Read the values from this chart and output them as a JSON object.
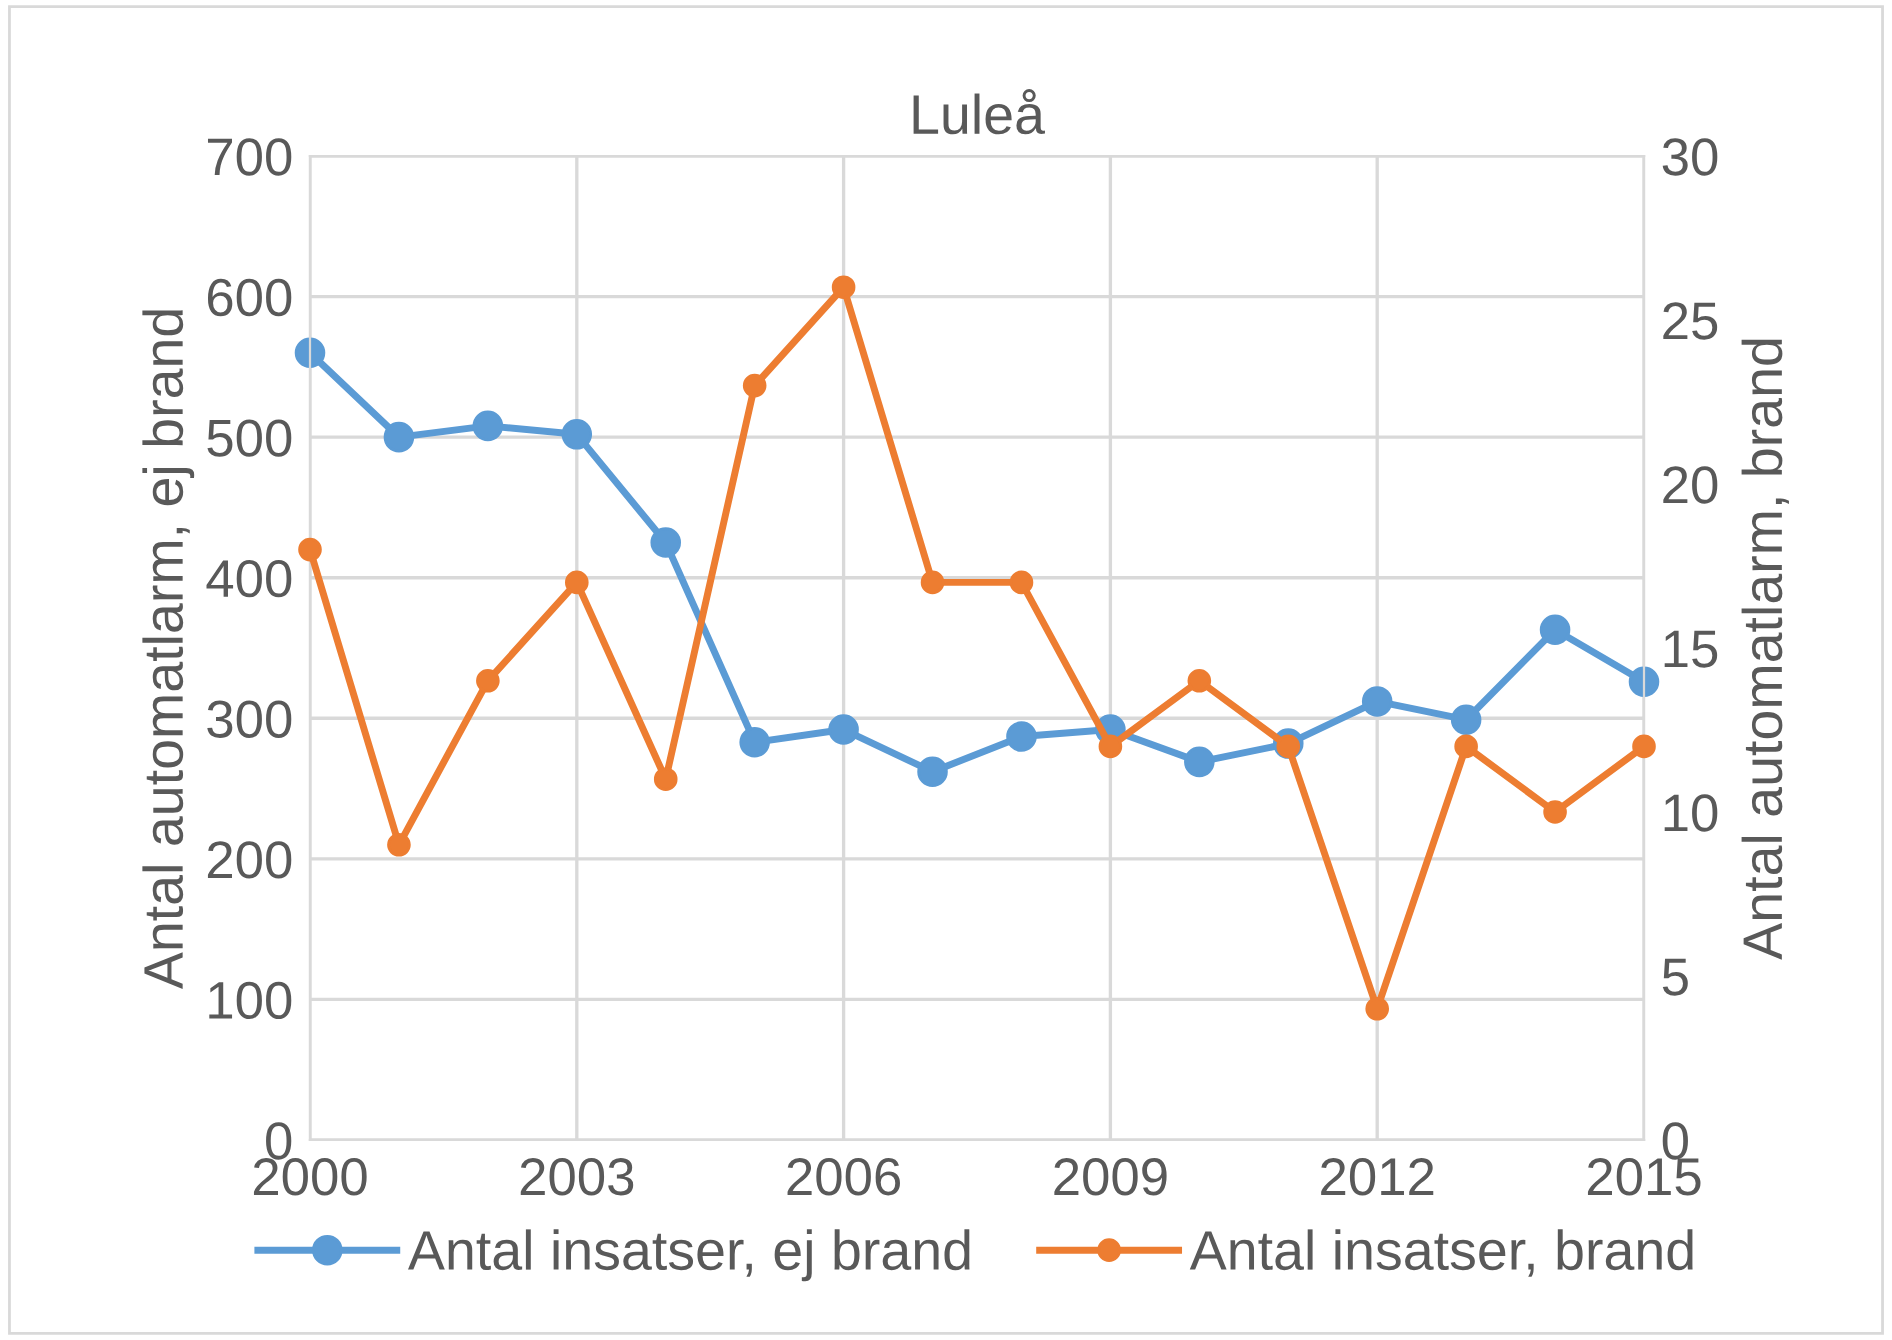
{
  "chart_data": {
    "type": "line",
    "title": "Luleå",
    "ylabel": "Antal automatlarm, ej brand",
    "y2label": "Antal automatlarm, brand",
    "x": [
      2000,
      2001,
      2002,
      2003,
      2004,
      2005,
      2006,
      2007,
      2008,
      2009,
      2010,
      2011,
      2012,
      2013,
      2014,
      2015
    ],
    "series": [
      {
        "name": "Antal insatser, ej brand",
        "color": "#5b9bd5",
        "values": [
          560,
          500,
          508,
          502,
          425,
          283,
          292,
          262,
          287,
          292,
          269,
          282,
          312,
          299,
          363,
          326
        ]
      },
      {
        "name": "Antal insatser, brand",
        "color": "#ed7d31",
        "axis": "y2",
        "values": [
          18,
          9,
          14,
          17,
          11,
          23,
          26,
          17,
          17,
          12,
          14,
          12,
          4,
          12,
          10,
          12
        ]
      }
    ],
    "xlim": [
      2000,
      2015
    ],
    "xticks": [
      2000,
      2003,
      2006,
      2009,
      2012,
      2015
    ],
    "ylim": [
      0,
      700
    ],
    "yticks": [
      0,
      100,
      200,
      300,
      400,
      500,
      600,
      700
    ],
    "y2lim": [
      0,
      30
    ],
    "y2ticks": [
      0,
      5,
      10,
      15,
      20,
      25,
      30
    ],
    "grid": true,
    "legend": "bottom",
    "marker": "circle",
    "line_style": "solid"
  }
}
